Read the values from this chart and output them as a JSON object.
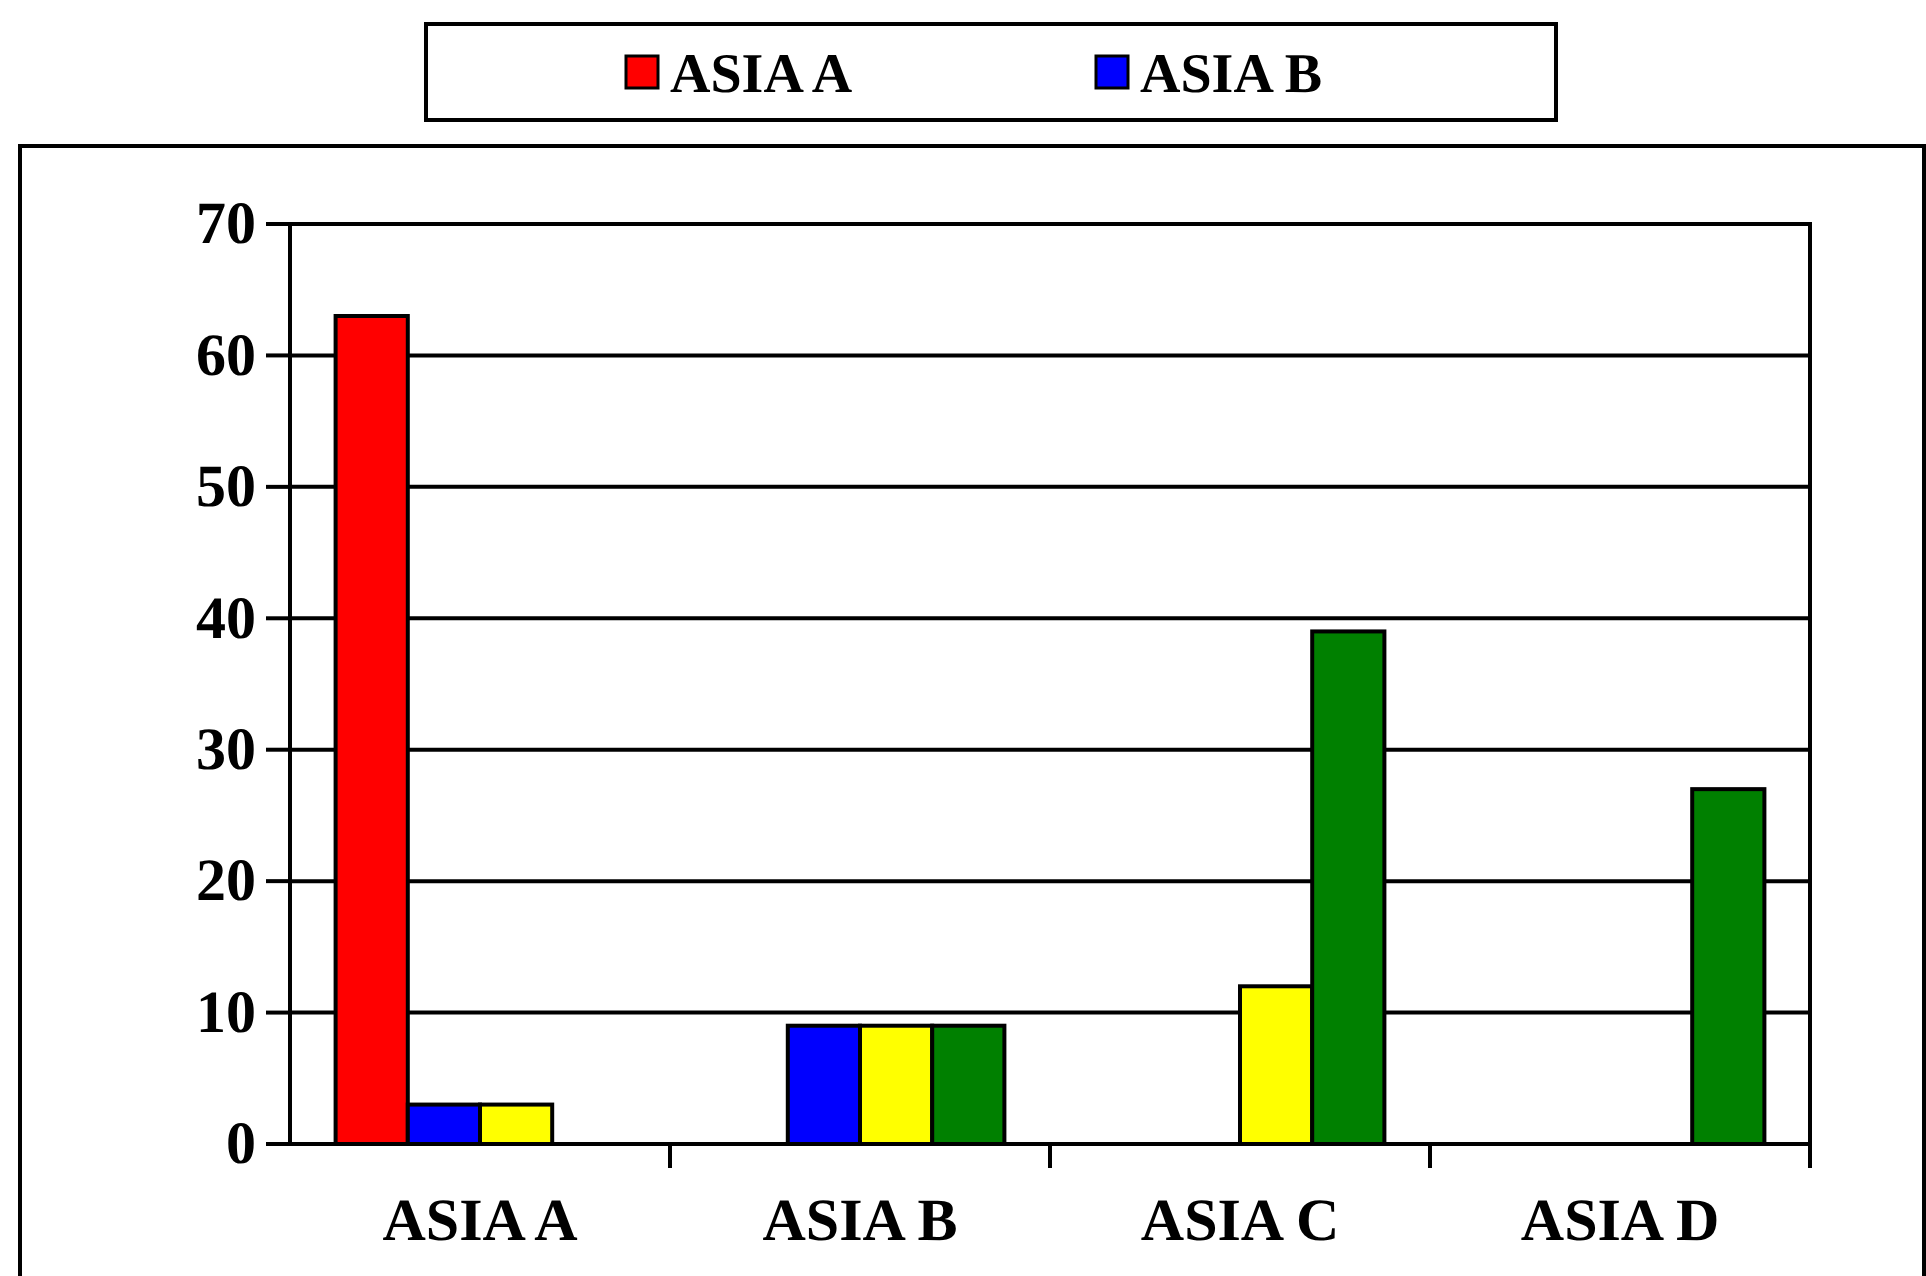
{
  "chart_data": {
    "type": "bar",
    "categories": [
      "ASIA A",
      "ASIA B",
      "ASIA C",
      "ASIA D"
    ],
    "series": [
      {
        "name": "ASIA A",
        "color": "#ff0000",
        "values": [
          63,
          0,
          0,
          0
        ]
      },
      {
        "name": "ASIA B",
        "color": "#0000ff",
        "values": [
          3,
          9,
          0,
          0
        ]
      },
      {
        "color": "#ffff00",
        "values": [
          3,
          9,
          12,
          0
        ]
      },
      {
        "color": "#008000",
        "values": [
          0,
          9,
          39,
          27
        ]
      }
    ],
    "ylim": [
      0,
      70
    ],
    "yticks": [
      0,
      10,
      20,
      30,
      40,
      50,
      60,
      70
    ],
    "grid": "y",
    "legend": "top"
  }
}
